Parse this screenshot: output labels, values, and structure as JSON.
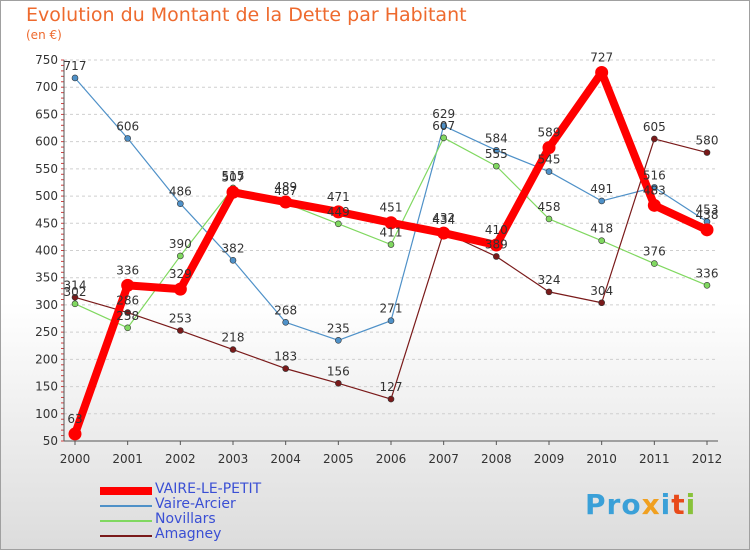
{
  "header": {
    "title": "Evolution du Montant de la Dette par Habitant",
    "subtitle": "(en €)"
  },
  "chart_data": {
    "type": "line",
    "x": [
      "2000",
      "2001",
      "2002",
      "2003",
      "2004",
      "2005",
      "2006",
      "2007",
      "2008",
      "2009",
      "2010",
      "2011",
      "2012"
    ],
    "y_ticks": [
      50,
      100,
      150,
      200,
      250,
      300,
      350,
      400,
      450,
      500,
      550,
      600,
      650,
      700,
      750
    ],
    "ylim": [
      50,
      750
    ],
    "grid": "horizontal-dashed",
    "legend_position": "bottom-left",
    "series": [
      {
        "name": "VAIRE-LE-PETIT",
        "color": "#ff0000",
        "values": [
          63,
          336,
          329,
          507,
          489,
          471,
          451,
          432,
          410,
          589,
          727,
          483,
          438
        ]
      },
      {
        "name": "Vaire-Arcier",
        "color": "#4f91c8",
        "values": [
          717,
          606,
          486,
          382,
          268,
          235,
          271,
          629,
          584,
          545,
          491,
          516,
          453
        ]
      },
      {
        "name": "Novillars",
        "color": "#80d860",
        "values": [
          302,
          258,
          390,
          515,
          487,
          449,
          411,
          607,
          555,
          458,
          418,
          376,
          336
        ]
      },
      {
        "name": "Amagney",
        "color": "#7a1a1a",
        "values": [
          314,
          286,
          253,
          218,
          183,
          156,
          127,
          434,
          389,
          324,
          304,
          605,
          580
        ]
      }
    ]
  },
  "logo": {
    "text": [
      "Pro",
      "x",
      "i",
      "t",
      "i"
    ]
  }
}
